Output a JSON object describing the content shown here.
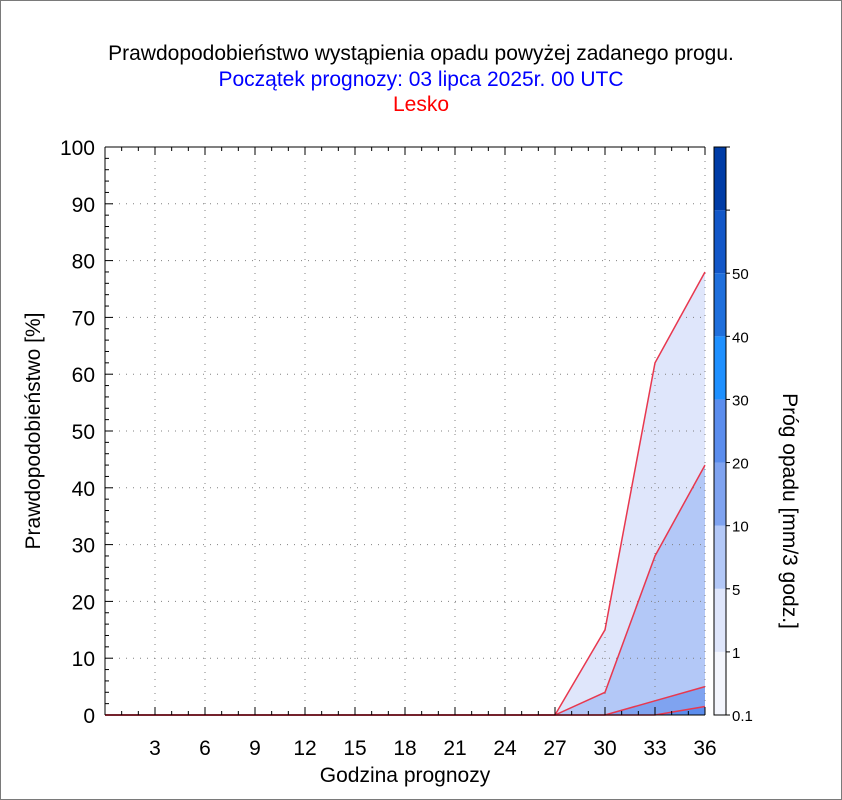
{
  "title": "Prawdopodobieństwo wystąpienia opadu powyżej zadanego progu.",
  "subtitle": "Początek prognozy: 03 lipca 2025r. 00 UTC",
  "location": "Lesko",
  "colors": {
    "title": "#000000",
    "subtitle": "#0000ff",
    "location": "#ff0000",
    "series_line": "#e8384f"
  },
  "chart_data": {
    "type": "area",
    "xlabel": "Godzina prognozy",
    "ylabel": "Prawdopodobieństwo [%]",
    "x": [
      0,
      3,
      6,
      9,
      12,
      15,
      18,
      21,
      24,
      27,
      30,
      33,
      36
    ],
    "xticks": [
      3,
      6,
      9,
      12,
      15,
      18,
      21,
      24,
      27,
      30,
      33,
      36
    ],
    "xlim": [
      0,
      36
    ],
    "yticks": [
      0,
      10,
      20,
      30,
      40,
      50,
      60,
      70,
      80,
      90,
      100
    ],
    "ylim": [
      0,
      100
    ],
    "grid": true,
    "series": [
      {
        "threshold": 0.1,
        "color": "#dfe6fb",
        "values": [
          0,
          0,
          0,
          0,
          0,
          0,
          0,
          0,
          0,
          0,
          15,
          62,
          78
        ]
      },
      {
        "threshold": 1,
        "color": "#b3c8f7",
        "values": [
          0,
          0,
          0,
          0,
          0,
          0,
          0,
          0,
          0,
          0,
          4,
          28,
          44
        ]
      },
      {
        "threshold": 5,
        "color": "#7fa3f0",
        "values": [
          0,
          0,
          0,
          0,
          0,
          0,
          0,
          0,
          0,
          0,
          0,
          2.5,
          5
        ]
      },
      {
        "threshold": 10,
        "color": "#5b8ded",
        "values": [
          0,
          0,
          0,
          0,
          0,
          0,
          0,
          0,
          0,
          0,
          0,
          0,
          1.5
        ]
      }
    ],
    "colorbar": {
      "label": "Próg opadu [mm/3 godz.]",
      "labels": [
        "0.1",
        "1",
        "5",
        "10",
        "20",
        "30",
        "40",
        "50"
      ],
      "bands": [
        {
          "color": "#f4f6fd"
        },
        {
          "color": "#dfe6fb",
          "label": "0.1"
        },
        {
          "color": "#b3c8f7",
          "label": "1"
        },
        {
          "color": "#7fa3f0",
          "label": "5"
        },
        {
          "color": "#5b8ded",
          "label": "10"
        },
        {
          "color": "#1e90ff",
          "label": "20"
        },
        {
          "color": "#1f6fdc",
          "label": "30"
        },
        {
          "color": "#1257c8",
          "label": "40"
        },
        {
          "color": "#003ca6",
          "label": "50"
        }
      ]
    }
  }
}
